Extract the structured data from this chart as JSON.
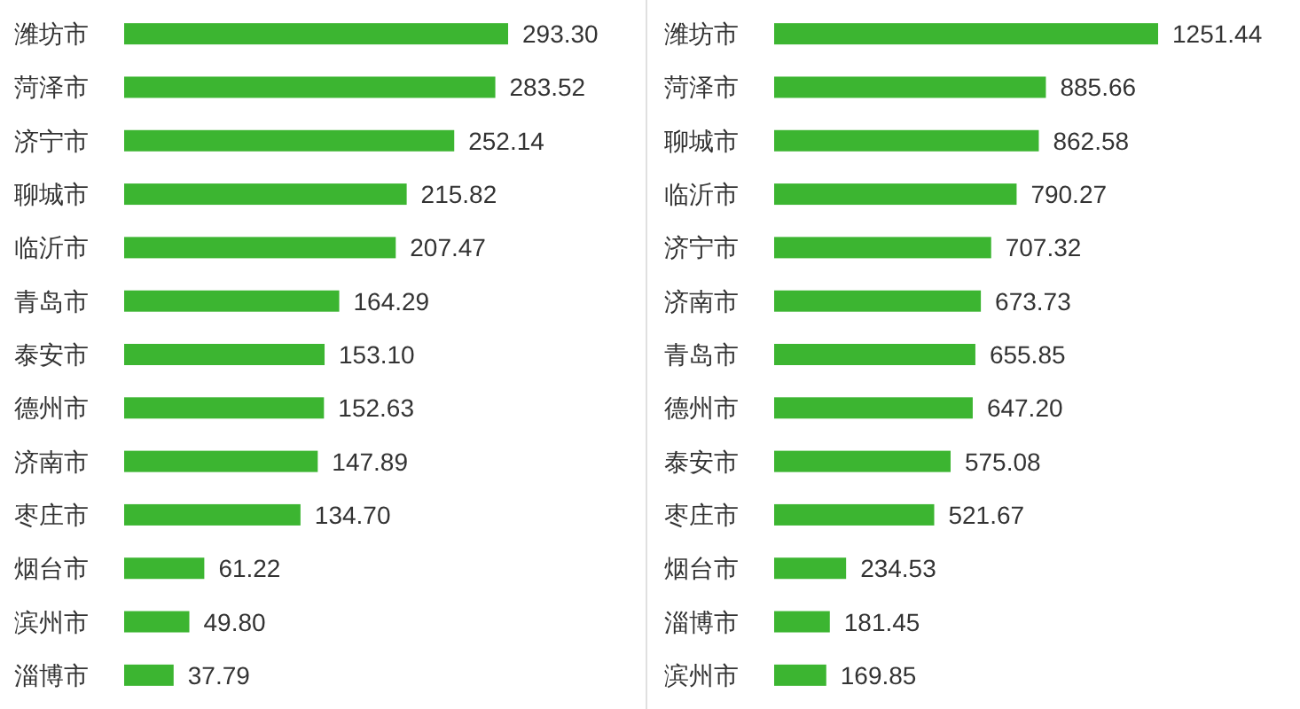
{
  "chart_data": [
    {
      "type": "bar",
      "orientation": "horizontal",
      "color": "#3cb531",
      "categories": [
        "潍坊市",
        "菏泽市",
        "济宁市",
        "聊城市",
        "临沂市",
        "青岛市",
        "泰安市",
        "德州市",
        "济南市",
        "枣庄市",
        "烟台市",
        "滨州市",
        "淄博市"
      ],
      "values": [
        293.3,
        283.52,
        252.14,
        215.82,
        207.47,
        164.29,
        153.1,
        152.63,
        147.89,
        134.7,
        61.22,
        49.8,
        37.79
      ],
      "value_labels": [
        "293.30",
        "283.52",
        "252.14",
        "215.82",
        "207.47",
        "164.29",
        "153.10",
        "152.63",
        "147.89",
        "134.70",
        "61.22",
        "49.80",
        "37.79"
      ]
    },
    {
      "type": "bar",
      "orientation": "horizontal",
      "color": "#3cb531",
      "categories": [
        "潍坊市",
        "菏泽市",
        "聊城市",
        "临沂市",
        "济宁市",
        "济南市",
        "青岛市",
        "德州市",
        "泰安市",
        "枣庄市",
        "烟台市",
        "淄博市",
        "滨州市"
      ],
      "values": [
        1251.44,
        885.66,
        862.58,
        790.27,
        707.32,
        673.73,
        655.85,
        647.2,
        575.08,
        521.67,
        234.53,
        181.45,
        169.85
      ],
      "value_labels": [
        "1251.44",
        "885.66",
        "862.58",
        "790.27",
        "707.32",
        "673.73",
        "655.85",
        "647.20",
        "575.08",
        "521.67",
        "234.53",
        "181.45",
        "169.85"
      ]
    }
  ]
}
